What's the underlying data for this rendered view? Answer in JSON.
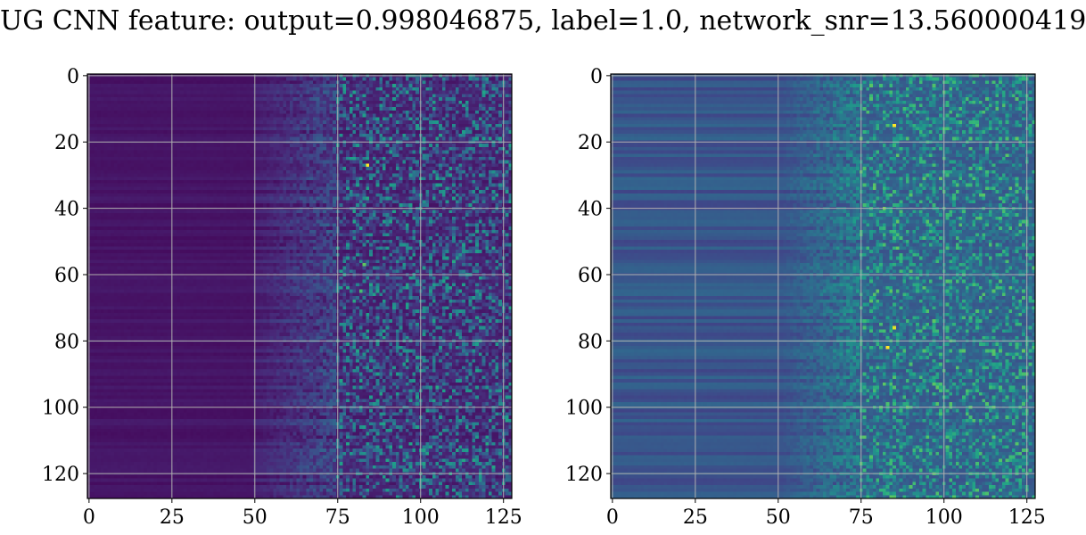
{
  "title": "UG CNN feature: output=0.998046875, label=1.0, network_snr=13.560000419",
  "chart_data": [
    {
      "type": "heatmap",
      "colormap": "viridis",
      "grid": true,
      "rows": 128,
      "cols": 128,
      "xlim": [
        0,
        127
      ],
      "ylim": [
        127,
        0
      ],
      "xticks": [
        "0",
        "25",
        "50",
        "75",
        "100",
        "125"
      ],
      "yticks": [
        "0",
        "20",
        "40",
        "60",
        "80",
        "100",
        "120"
      ],
      "xtick_values": [
        0,
        25,
        50,
        75,
        100,
        125
      ],
      "ytick_values": [
        0,
        20,
        40,
        60,
        80,
        100,
        120
      ],
      "pattern": {
        "low_region_cols": [
          0,
          50
        ],
        "transition_cols": [
          50,
          75
        ],
        "noisy_region_cols": [
          75,
          127
        ],
        "background_level": 0.03,
        "hotspots": [
          {
            "row": 27,
            "col": 84,
            "value": 1.0
          },
          {
            "row": 57,
            "col": 83,
            "value": 0.75
          },
          {
            "row": 65,
            "col": 82,
            "value": 0.7
          },
          {
            "row": 68,
            "col": 80,
            "value": 0.6
          },
          {
            "row": 33,
            "col": 81,
            "value": 0.55
          },
          {
            "row": 48,
            "col": 85,
            "value": 0.5
          }
        ]
      }
    },
    {
      "type": "heatmap",
      "colormap": "viridis",
      "grid": true,
      "rows": 128,
      "cols": 128,
      "xlim": [
        0,
        127
      ],
      "ylim": [
        127,
        0
      ],
      "xticks": [
        "0",
        "25",
        "50",
        "75",
        "100",
        "125"
      ],
      "yticks": [
        "0",
        "20",
        "40",
        "60",
        "80",
        "100",
        "120"
      ],
      "xtick_values": [
        0,
        25,
        50,
        75,
        100,
        125
      ],
      "ytick_values": [
        0,
        20,
        40,
        60,
        80,
        100,
        120
      ],
      "pattern": {
        "low_region_cols": [
          0,
          50
        ],
        "transition_cols": [
          50,
          75
        ],
        "noisy_region_cols": [
          75,
          127
        ],
        "background_level": 0.2,
        "hotspots": [
          {
            "row": 15,
            "col": 85,
            "value": 1.0
          },
          {
            "row": 82,
            "col": 83,
            "value": 1.0
          },
          {
            "row": 76,
            "col": 85,
            "value": 0.95
          },
          {
            "row": 40,
            "col": 82,
            "value": 0.8
          },
          {
            "row": 52,
            "col": 86,
            "value": 0.75
          },
          {
            "row": 36,
            "col": 84,
            "value": 0.7
          },
          {
            "row": 59,
            "col": 100,
            "value": 0.6
          },
          {
            "row": 103,
            "col": 85,
            "value": 0.6
          },
          {
            "row": 115,
            "col": 86,
            "value": 0.55
          },
          {
            "row": 95,
            "col": 84,
            "value": 0.55
          }
        ]
      }
    }
  ]
}
